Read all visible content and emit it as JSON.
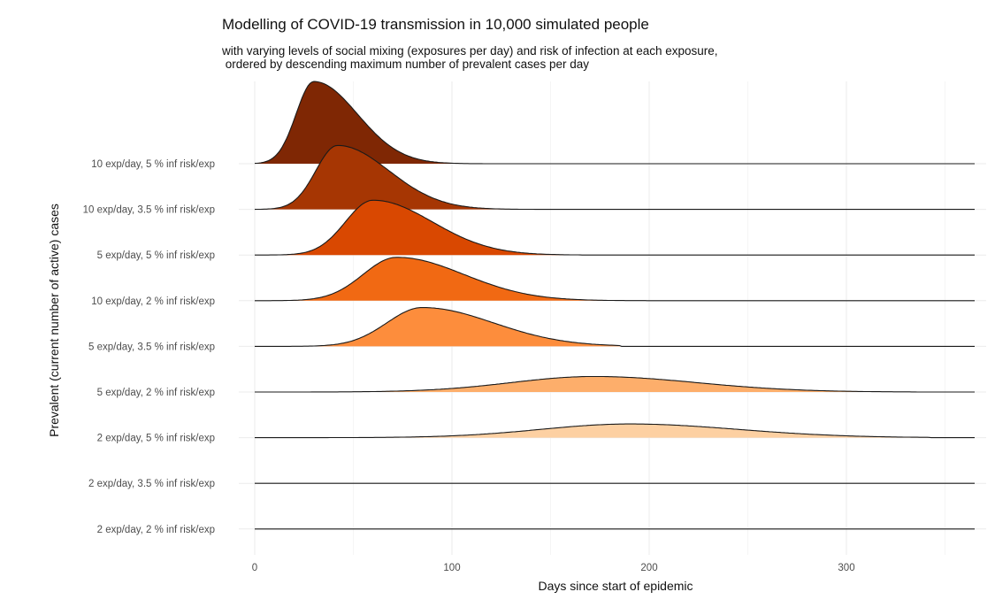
{
  "chart_data": {
    "type": "ridgeline",
    "title": "Modelling of COVID-19 transmission in 10,000 simulated people",
    "subtitle": "with varying levels of social mixing (exposures per day) and risk of infection at each exposure,\n ordered by descending maximum number of prevalent cases per day",
    "xlabel": "Days since start of epidemic",
    "ylabel": "Prevalent (current number of active) cases",
    "xlim": [
      -5,
      370
    ],
    "x_ticks": [
      0,
      100,
      200,
      300
    ],
    "x_range": [
      0,
      365
    ],
    "grid": true,
    "legend": "none",
    "series": [
      {
        "name": "10 exp/day, 5 % inf risk/exp",
        "color": "#7f2704",
        "peak_day": 30,
        "peak_height": 1.8,
        "rise_width": 9,
        "decay_width": 22,
        "tail_start": 160
      },
      {
        "name": "10 exp/day, 3.5 % inf risk/exp",
        "color": "#a63603",
        "peak_day": 42,
        "peak_height": 1.4,
        "rise_width": 11,
        "decay_width": 26,
        "tail_start": 180
      },
      {
        "name": "5 exp/day, 5 % inf risk/exp",
        "color": "#d94801",
        "peak_day": 60,
        "peak_height": 1.2,
        "rise_width": 14,
        "decay_width": 30,
        "tail_start": 165
      },
      {
        "name": "10 exp/day, 2 % inf risk/exp",
        "color": "#f16913",
        "peak_day": 72,
        "peak_height": 0.95,
        "rise_width": 17,
        "decay_width": 34,
        "tail_start": 205
      },
      {
        "name": "5 exp/day, 3.5 % inf risk/exp",
        "color": "#fd8d3c",
        "peak_day": 85,
        "peak_height": 0.85,
        "rise_width": 18,
        "decay_width": 36,
        "tail_start": 185
      },
      {
        "name": "5 exp/day, 2 % inf risk/exp",
        "color": "#fdae6b",
        "peak_day": 172,
        "peak_height": 0.34,
        "rise_width": 42,
        "decay_width": 52,
        "tail_start": 335
      },
      {
        "name": "2 exp/day, 5 % inf risk/exp",
        "color": "#fdd0a2",
        "peak_day": 190,
        "peak_height": 0.3,
        "rise_width": 45,
        "decay_width": 55,
        "tail_start": 342
      },
      {
        "name": "2 exp/day, 3.5 % inf risk/exp",
        "color": "#fee6ce",
        "peak_day": 300,
        "peak_height": 0.0,
        "rise_width": 40,
        "decay_width": 40,
        "tail_start": 365
      },
      {
        "name": "2 exp/day, 2 % inf risk/exp",
        "color": "#fff5eb",
        "peak_day": 300,
        "peak_height": 0.0,
        "rise_width": 40,
        "decay_width": 40,
        "tail_start": 365
      }
    ]
  }
}
